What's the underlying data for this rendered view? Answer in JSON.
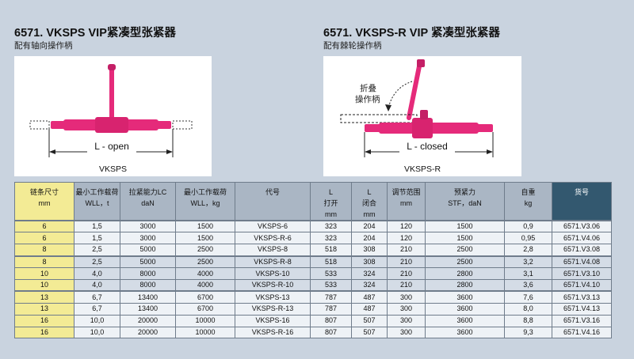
{
  "products": [
    {
      "title": "6571. VKSPS VIP紧凑型张紧器",
      "subtitle": "配有轴向操作柄",
      "dimension_label": "L - open",
      "caption": "VKSPS"
    },
    {
      "title": "6571. VKSPS-R VIP 紧凑型张紧器",
      "subtitle": "配有棘轮操作柄",
      "dimension_label": "L - closed",
      "callout": [
        "折叠",
        "操作柄"
      ],
      "caption": "VKSPS-R"
    }
  ],
  "table": {
    "headers": [
      [
        "链条尺寸",
        "mm"
      ],
      [
        "最小工作载荷",
        "WLL，t"
      ],
      [
        "拉紧能力LC",
        "daN"
      ],
      [
        "最小工作载荷",
        "WLL，kg"
      ],
      [
        "代号",
        ""
      ],
      [
        "L",
        "打开",
        "mm"
      ],
      [
        "L",
        "闭合",
        "mm"
      ],
      [
        "调节范围",
        "mm"
      ],
      [
        "预紧力",
        "STF，daN"
      ],
      [
        "自重",
        "kg"
      ],
      [
        "货号",
        ""
      ]
    ],
    "groups": [
      [
        [
          "6",
          "1,5",
          "3000",
          "1500",
          "VKSPS-6",
          "323",
          "204",
          "120",
          "1500",
          "0,9",
          "6571.V3.06"
        ],
        [
          "6",
          "1,5",
          "3000",
          "1500",
          "VKSPS-R-6",
          "323",
          "204",
          "120",
          "1500",
          "0,95",
          "6571.V4.06"
        ],
        [
          "8",
          "2,5",
          "5000",
          "2500",
          "VKSPS-8",
          "518",
          "308",
          "210",
          "2500",
          "2,8",
          "6571.V3.08"
        ]
      ],
      [
        [
          "8",
          "2,5",
          "5000",
          "2500",
          "VKSPS-R-8",
          "518",
          "308",
          "210",
          "2500",
          "3,2",
          "6571.V4.08"
        ],
        [
          "10",
          "4,0",
          "8000",
          "4000",
          "VKSPS-10",
          "533",
          "324",
          "210",
          "2800",
          "3,1",
          "6571.V3.10"
        ],
        [
          "10",
          "4,0",
          "8000",
          "4000",
          "VKSPS-R-10",
          "533",
          "324",
          "210",
          "2800",
          "3,6",
          "6571.V4.10"
        ]
      ],
      [
        [
          "13",
          "6,7",
          "13400",
          "6700",
          "VKSPS-13",
          "787",
          "487",
          "300",
          "3600",
          "7,6",
          "6571.V3.13"
        ],
        [
          "13",
          "6,7",
          "13400",
          "6700",
          "VKSPS-R-13",
          "787",
          "487",
          "300",
          "3600",
          "8,0",
          "6571.V4.13"
        ],
        [
          "16",
          "10,0",
          "20000",
          "10000",
          "VKSPS-16",
          "807",
          "507",
          "300",
          "3600",
          "8,8",
          "6571.V3.16"
        ],
        [
          "16",
          "10,0",
          "20000",
          "10000",
          "VKSPS-R-16",
          "807",
          "507",
          "300",
          "3600",
          "9,3",
          "6571.V4.16"
        ]
      ]
    ]
  },
  "colors": {
    "page_bg": "#c9d3df",
    "tensioner": "#e52a7a",
    "header_bg": "#aab6c4",
    "yellow": "#f3eb95",
    "dark_header": "#33586f"
  }
}
